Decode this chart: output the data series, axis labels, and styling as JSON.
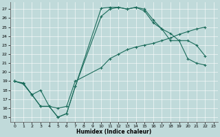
{
  "xlabel": "Humidex (Indice chaleur)",
  "background_color": "#c0dada",
  "line_color": "#1a6b5a",
  "xlim": [
    -0.5,
    23.5
  ],
  "ylim": [
    14.5,
    27.8
  ],
  "xticks": [
    0,
    1,
    2,
    3,
    4,
    5,
    6,
    7,
    8,
    9,
    10,
    11,
    12,
    13,
    14,
    15,
    16,
    17,
    18,
    19,
    20,
    21,
    22,
    23
  ],
  "yticks": [
    15,
    16,
    17,
    18,
    19,
    20,
    21,
    22,
    23,
    24,
    25,
    26,
    27
  ],
  "curve1_x": [
    0,
    1,
    2,
    3,
    4,
    5,
    6,
    7,
    10,
    11,
    12,
    13,
    14,
    15,
    16,
    17,
    18,
    19,
    20,
    21,
    22
  ],
  "curve1_y": [
    19.0,
    18.7,
    17.5,
    16.2,
    16.2,
    15.0,
    15.4,
    18.4,
    27.1,
    27.2,
    27.2,
    27.0,
    27.2,
    26.8,
    25.5,
    24.8,
    23.5,
    23.5,
    21.5,
    21.0,
    20.8
  ],
  "curve2_x": [
    0,
    1,
    2,
    3,
    4,
    5,
    6,
    7,
    10,
    11,
    12,
    13,
    14,
    15,
    16,
    17,
    18,
    19,
    20,
    21,
    22
  ],
  "curve2_y": [
    19.0,
    18.7,
    17.5,
    16.2,
    16.2,
    15.0,
    15.4,
    18.4,
    26.2,
    27.0,
    27.2,
    27.0,
    27.2,
    27.0,
    25.8,
    24.8,
    24.3,
    23.5,
    23.5,
    23.0,
    21.8
  ],
  "curve3_x": [
    0,
    1,
    2,
    3,
    4,
    5,
    6,
    7,
    10,
    11,
    12,
    13,
    14,
    15,
    16,
    17,
    18,
    19,
    20,
    21,
    22
  ],
  "curve3_y": [
    19.0,
    18.8,
    17.5,
    18.0,
    16.2,
    16.0,
    16.2,
    19.0,
    20.5,
    21.5,
    22.0,
    22.5,
    22.8,
    23.0,
    23.2,
    23.5,
    23.8,
    24.2,
    24.5,
    24.8,
    25.0
  ]
}
